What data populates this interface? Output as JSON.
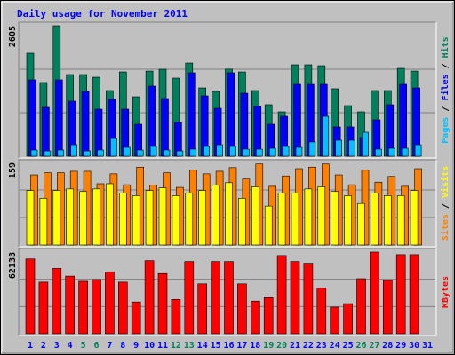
{
  "chart_data": [
    {
      "type": "bar",
      "title": "Daily usage for November 2011",
      "title_color": "#0000ff",
      "ylim": [
        0,
        2605
      ],
      "yticks": [
        2605
      ],
      "grid": true,
      "legend_separator": " / ",
      "series": [
        {
          "name": "Pages",
          "color": "#00c0ff",
          "values": [
            124,
            106,
            124,
            230,
            106,
            124,
            354,
            177,
            124,
            195,
            124,
            106,
            142,
            195,
            230,
            195,
            142,
            142,
            159,
            195,
            177,
            284,
            797,
            319,
            319,
            478,
            142,
            159,
            159,
            230,
            null
          ]
        },
        {
          "name": "Files",
          "color": "#0000ff",
          "values": [
            1524,
            975,
            1524,
            1099,
            1294,
            939,
            1134,
            939,
            638,
            1400,
            1152,
            673,
            1666,
            1205,
            957,
            1666,
            1258,
            992,
            638,
            797,
            1435,
            1435,
            1435,
            585,
            585,
            372,
            727,
            1028,
            1435,
            1364,
            null
          ]
        },
        {
          "name": "Hits",
          "color": "#00805c",
          "values": [
            2056,
            1471,
            2605,
            1630,
            1630,
            1577,
            1311,
            1683,
            1187,
            1700,
            1737,
            1559,
            1860,
            1364,
            1294,
            1740,
            1683,
            1311,
            1028,
            886,
            1825,
            1825,
            1807,
            1347,
            1010,
            886,
            1311,
            1311,
            1754,
            1700,
            null
          ]
        }
      ]
    },
    {
      "type": "bar",
      "ylim": [
        0,
        159
      ],
      "yticks": [
        159
      ],
      "grid": true,
      "legend_separator": " / ",
      "series": [
        {
          "name": "Sites",
          "color": "#ff8000",
          "values": [
            135,
            139,
            139,
            142,
            142,
            118,
            137,
            116,
            150,
            115,
            139,
            111,
            144,
            137,
            142,
            149,
            127,
            156,
            113,
            133,
            147,
            150,
            156,
            135,
            116,
            144,
            121,
            132,
            113,
            147,
            null
          ]
        },
        {
          "name": "Visits",
          "color": "#ffff00",
          "values": [
            105,
            90,
            105,
            108,
            103,
            108,
            118,
            100,
            95,
            105,
            110,
            95,
            100,
            105,
            115,
            120,
            90,
            112,
            75,
            100,
            100,
            108,
            112,
            103,
            95,
            80,
            100,
            95,
            95,
            105,
            null
          ]
        }
      ]
    },
    {
      "type": "bar",
      "ylim": [
        0,
        62133
      ],
      "yticks": [
        62133
      ],
      "grid": true,
      "categories": [
        "1",
        "2",
        "3",
        "4",
        "5",
        "6",
        "7",
        "8",
        "9",
        "10",
        "11",
        "12",
        "13",
        "14",
        "15",
        "16",
        "17",
        "18",
        "19",
        "20",
        "21",
        "22",
        "23",
        "24",
        "25",
        "26",
        "27",
        "28",
        "29",
        "30",
        "31"
      ],
      "category_colors": [
        "#0000ff",
        "#0000ff",
        "#0000ff",
        "#0000ff",
        "#00805c",
        "#00805c",
        "#0000ff",
        "#0000ff",
        "#0000ff",
        "#0000ff",
        "#0000ff",
        "#00805c",
        "#00805c",
        "#0000ff",
        "#0000ff",
        "#0000ff",
        "#0000ff",
        "#0000ff",
        "#00805c",
        "#00805c",
        "#0000ff",
        "#0000ff",
        "#0000ff",
        "#0000ff",
        "#0000ff",
        "#00805c",
        "#00805c",
        "#0000ff",
        "#0000ff",
        "#0000ff",
        "#0000ff"
      ],
      "series": [
        {
          "name": "KBytes",
          "color": "#ff0000",
          "values": [
            56898,
            39240,
            49704,
            43818,
            39894,
            41202,
            47088,
            39240,
            24198,
            55590,
            45780,
            26160,
            54936,
            37932,
            54936,
            54936,
            37932,
            24852,
            27468,
            59514,
            54936,
            53628,
            34662,
            20274,
            22890,
            41856,
            62133,
            40548,
            60168,
            60168,
            null
          ]
        }
      ]
    }
  ]
}
